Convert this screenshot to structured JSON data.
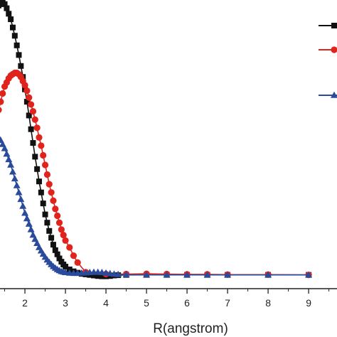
{
  "chart_data": {
    "type": "line",
    "xlabel": "R(angstrom)",
    "ylabel": "",
    "title": "",
    "xlim": [
      1.35,
      9.7
    ],
    "ylim": [
      -0.05,
      1.0
    ],
    "xticks": [
      2,
      3,
      4,
      5,
      6,
      7,
      8,
      9
    ],
    "xtick_labels": [
      "2",
      "3",
      "4",
      "5",
      "6",
      "7",
      "8",
      "9"
    ],
    "grid": false,
    "series": [
      {
        "color": "#111111",
        "marker": "square",
        "points": [
          [
            1.35,
            0.98
          ],
          [
            1.4,
            0.985
          ],
          [
            1.45,
            0.99
          ],
          [
            1.5,
            0.985
          ],
          [
            1.55,
            0.97
          ],
          [
            1.6,
            0.95
          ],
          [
            1.65,
            0.93
          ],
          [
            1.7,
            0.9
          ],
          [
            1.75,
            0.87
          ],
          [
            1.8,
            0.835
          ],
          [
            1.85,
            0.8
          ],
          [
            1.9,
            0.76
          ],
          [
            1.95,
            0.72
          ],
          [
            2.0,
            0.675
          ],
          [
            2.05,
            0.63
          ],
          [
            2.1,
            0.58
          ],
          [
            2.15,
            0.53
          ],
          [
            2.2,
            0.48
          ],
          [
            2.25,
            0.43
          ],
          [
            2.3,
            0.385
          ],
          [
            2.35,
            0.34
          ],
          [
            2.4,
            0.3
          ],
          [
            2.45,
            0.26
          ],
          [
            2.5,
            0.22
          ],
          [
            2.55,
            0.19
          ],
          [
            2.6,
            0.16
          ],
          [
            2.65,
            0.135
          ],
          [
            2.7,
            0.11
          ],
          [
            2.75,
            0.09
          ],
          [
            2.8,
            0.075
          ],
          [
            2.85,
            0.06
          ],
          [
            2.9,
            0.048
          ],
          [
            2.95,
            0.038
          ],
          [
            3.0,
            0.03
          ],
          [
            3.1,
            0.02
          ],
          [
            3.2,
            0.013
          ],
          [
            3.3,
            0.008
          ],
          [
            3.4,
            0.004
          ],
          [
            3.5,
            0.002
          ],
          [
            3.6,
            0.0
          ],
          [
            3.7,
            -0.002
          ],
          [
            3.8,
            -0.004
          ],
          [
            3.9,
            -0.005
          ],
          [
            4.0,
            -0.005
          ],
          [
            4.1,
            -0.004
          ],
          [
            4.2,
            -0.002
          ],
          [
            4.3,
            -0.001
          ],
          [
            4.5,
            0.0
          ],
          [
            5.0,
            0.0
          ],
          [
            5.5,
            0.0
          ],
          [
            6.0,
            0.0
          ],
          [
            6.5,
            0.0
          ],
          [
            7.0,
            0.0
          ],
          [
            8.0,
            0.0
          ],
          [
            9.0,
            0.0
          ]
        ]
      },
      {
        "color": "#e0231c",
        "marker": "circle",
        "points": [
          [
            1.35,
            0.6
          ],
          [
            1.4,
            0.63
          ],
          [
            1.45,
            0.66
          ],
          [
            1.5,
            0.685
          ],
          [
            1.55,
            0.7
          ],
          [
            1.6,
            0.715
          ],
          [
            1.65,
            0.725
          ],
          [
            1.7,
            0.73
          ],
          [
            1.75,
            0.735
          ],
          [
            1.8,
            0.735
          ],
          [
            1.85,
            0.73
          ],
          [
            1.9,
            0.72
          ],
          [
            1.95,
            0.705
          ],
          [
            2.0,
            0.69
          ],
          [
            2.05,
            0.67
          ],
          [
            2.1,
            0.645
          ],
          [
            2.15,
            0.62
          ],
          [
            2.2,
            0.595
          ],
          [
            2.25,
            0.565
          ],
          [
            2.3,
            0.535
          ],
          [
            2.35,
            0.5
          ],
          [
            2.4,
            0.47
          ],
          [
            2.45,
            0.435
          ],
          [
            2.5,
            0.4
          ],
          [
            2.55,
            0.365
          ],
          [
            2.6,
            0.33
          ],
          [
            2.65,
            0.3
          ],
          [
            2.7,
            0.27
          ],
          [
            2.75,
            0.24
          ],
          [
            2.8,
            0.215
          ],
          [
            2.85,
            0.19
          ],
          [
            2.9,
            0.165
          ],
          [
            2.95,
            0.145
          ],
          [
            3.0,
            0.125
          ],
          [
            3.1,
            0.1
          ],
          [
            3.2,
            0.07
          ],
          [
            3.3,
            0.045
          ],
          [
            3.5,
            0.01
          ],
          [
            4.0,
            0.003
          ],
          [
            4.5,
            0.003
          ],
          [
            5.0,
            0.004
          ],
          [
            5.5,
            0.003
          ],
          [
            6.0,
            0.002
          ],
          [
            6.5,
            0.002
          ],
          [
            7.0,
            0.001
          ],
          [
            8.0,
            0.001
          ],
          [
            9.0,
            0.0
          ]
        ]
      },
      {
        "color": "#2a4b9b",
        "marker": "triangle",
        "points": [
          [
            1.35,
            0.5
          ],
          [
            1.4,
            0.49
          ],
          [
            1.45,
            0.475
          ],
          [
            1.5,
            0.46
          ],
          [
            1.55,
            0.44
          ],
          [
            1.6,
            0.42
          ],
          [
            1.65,
            0.4
          ],
          [
            1.7,
            0.375
          ],
          [
            1.75,
            0.35
          ],
          [
            1.8,
            0.325
          ],
          [
            1.85,
            0.3
          ],
          [
            1.9,
            0.275
          ],
          [
            1.95,
            0.25
          ],
          [
            2.0,
            0.225
          ],
          [
            2.05,
            0.205
          ],
          [
            2.1,
            0.185
          ],
          [
            2.15,
            0.165
          ],
          [
            2.2,
            0.145
          ],
          [
            2.25,
            0.13
          ],
          [
            2.3,
            0.115
          ],
          [
            2.35,
            0.1
          ],
          [
            2.4,
            0.088
          ],
          [
            2.45,
            0.076
          ],
          [
            2.5,
            0.065
          ],
          [
            2.55,
            0.055
          ],
          [
            2.6,
            0.046
          ],
          [
            2.65,
            0.038
          ],
          [
            2.7,
            0.031
          ],
          [
            2.75,
            0.025
          ],
          [
            2.8,
            0.02
          ],
          [
            2.85,
            0.016
          ],
          [
            2.9,
            0.013
          ],
          [
            2.95,
            0.011
          ],
          [
            3.0,
            0.009
          ],
          [
            3.1,
            0.007
          ],
          [
            3.2,
            0.006
          ],
          [
            3.3,
            0.006
          ],
          [
            3.4,
            0.007
          ],
          [
            3.5,
            0.008
          ],
          [
            3.6,
            0.009
          ],
          [
            3.7,
            0.01
          ],
          [
            3.8,
            0.01
          ],
          [
            3.9,
            0.009
          ],
          [
            4.0,
            0.007
          ],
          [
            4.1,
            0.005
          ],
          [
            4.2,
            0.003
          ],
          [
            4.3,
            0.002
          ],
          [
            4.5,
            0.001
          ],
          [
            5.0,
            0.0
          ],
          [
            5.5,
            0.0
          ],
          [
            6.0,
            0.0
          ],
          [
            6.5,
            0.0
          ],
          [
            7.0,
            0.0
          ],
          [
            8.0,
            0.0
          ],
          [
            9.0,
            0.0
          ]
        ]
      }
    ],
    "legend": {
      "placement": "top-right",
      "entries": [
        {
          "color": "#111111",
          "marker": "square"
        },
        {
          "color": "#e0231c",
          "marker": "circle"
        },
        {
          "color": "#2a4b9b",
          "marker": "triangle"
        }
      ]
    }
  }
}
